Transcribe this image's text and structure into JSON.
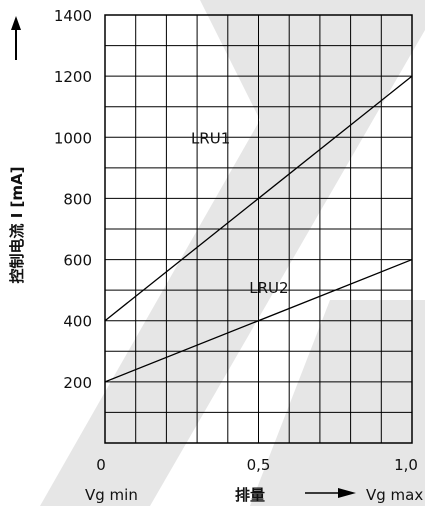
{
  "chart_data": {
    "type": "line",
    "ylabel": "控制电流 I [mA]",
    "xlabel": "排量",
    "x_ticks": [
      "0",
      "0,5",
      "1,0"
    ],
    "x_tick_values": [
      0,
      0.5,
      1.0
    ],
    "x_min_label": "Vg min",
    "x_max_label": "Vg max",
    "xlim": [
      0,
      1
    ],
    "ylim": [
      0,
      1400
    ],
    "y_ticks": [
      200,
      400,
      600,
      800,
      1000,
      1200,
      1400
    ],
    "grid": true,
    "series": [
      {
        "name": "LRU1",
        "x": [
          0,
          1
        ],
        "y": [
          400,
          1200
        ]
      },
      {
        "name": "LRU2",
        "x": [
          0,
          1
        ],
        "y": [
          200,
          600
        ]
      }
    ],
    "watermark_color": "#e6e6e6"
  }
}
